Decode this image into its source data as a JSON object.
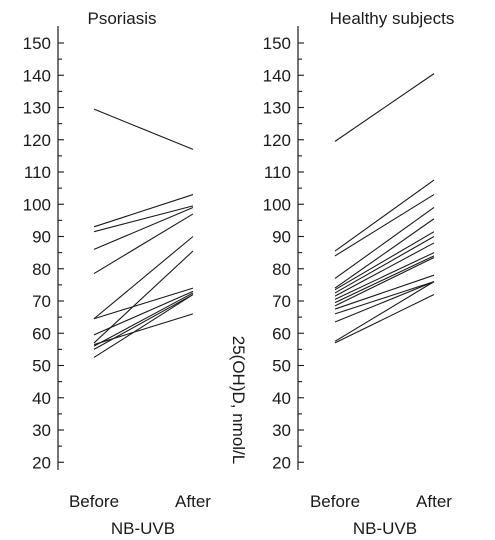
{
  "chart_data": [
    {
      "type": "line",
      "title": "Psoriasis",
      "xlabel": "NB-UVB",
      "ylabel": "25(OH)D, nmol/L",
      "categories": [
        "Before",
        "After"
      ],
      "ylim": [
        17,
        152
      ],
      "yticks": [
        20,
        30,
        40,
        50,
        60,
        70,
        80,
        90,
        100,
        110,
        120,
        130,
        140,
        150
      ],
      "series": [
        {
          "values": [
            129.5,
            117
          ]
        },
        {
          "values": [
            93,
            103
          ]
        },
        {
          "values": [
            91.5,
            99.5
          ]
        },
        {
          "values": [
            86,
            99
          ]
        },
        {
          "values": [
            78.5,
            97
          ]
        },
        {
          "values": [
            64.5,
            74
          ]
        },
        {
          "values": [
            64.5,
            90
          ]
        },
        {
          "values": [
            59.5,
            73
          ]
        },
        {
          "values": [
            56.5,
            66
          ]
        },
        {
          "values": [
            57,
            85.5
          ]
        },
        {
          "values": [
            56,
            72.5
          ]
        },
        {
          "values": [
            55,
            72
          ]
        },
        {
          "values": [
            52.5,
            72
          ]
        }
      ]
    },
    {
      "type": "line",
      "title": "Healthy subjects",
      "xlabel": "NB-UVB",
      "ylabel": "",
      "categories": [
        "Before",
        "After"
      ],
      "ylim": [
        17,
        152
      ],
      "yticks": [
        20,
        30,
        40,
        50,
        60,
        70,
        80,
        90,
        100,
        110,
        120,
        130,
        140,
        150
      ],
      "series": [
        {
          "values": [
            119.5,
            140.5
          ]
        },
        {
          "values": [
            85.5,
            107.5
          ]
        },
        {
          "values": [
            84,
            103
          ]
        },
        {
          "values": [
            77,
            99
          ]
        },
        {
          "values": [
            74,
            95.5
          ]
        },
        {
          "values": [
            73.5,
            91.5
          ]
        },
        {
          "values": [
            72.5,
            90
          ]
        },
        {
          "values": [
            71.5,
            88
          ]
        },
        {
          "values": [
            70.5,
            85
          ]
        },
        {
          "values": [
            69.5,
            84
          ]
        },
        {
          "values": [
            68.5,
            83.5
          ]
        },
        {
          "values": [
            67.5,
            78
          ]
        },
        {
          "values": [
            66,
            76
          ]
        },
        {
          "values": [
            63.5,
            76
          ]
        },
        {
          "values": [
            57.5,
            76
          ]
        },
        {
          "values": [
            57,
            72
          ]
        }
      ]
    }
  ]
}
